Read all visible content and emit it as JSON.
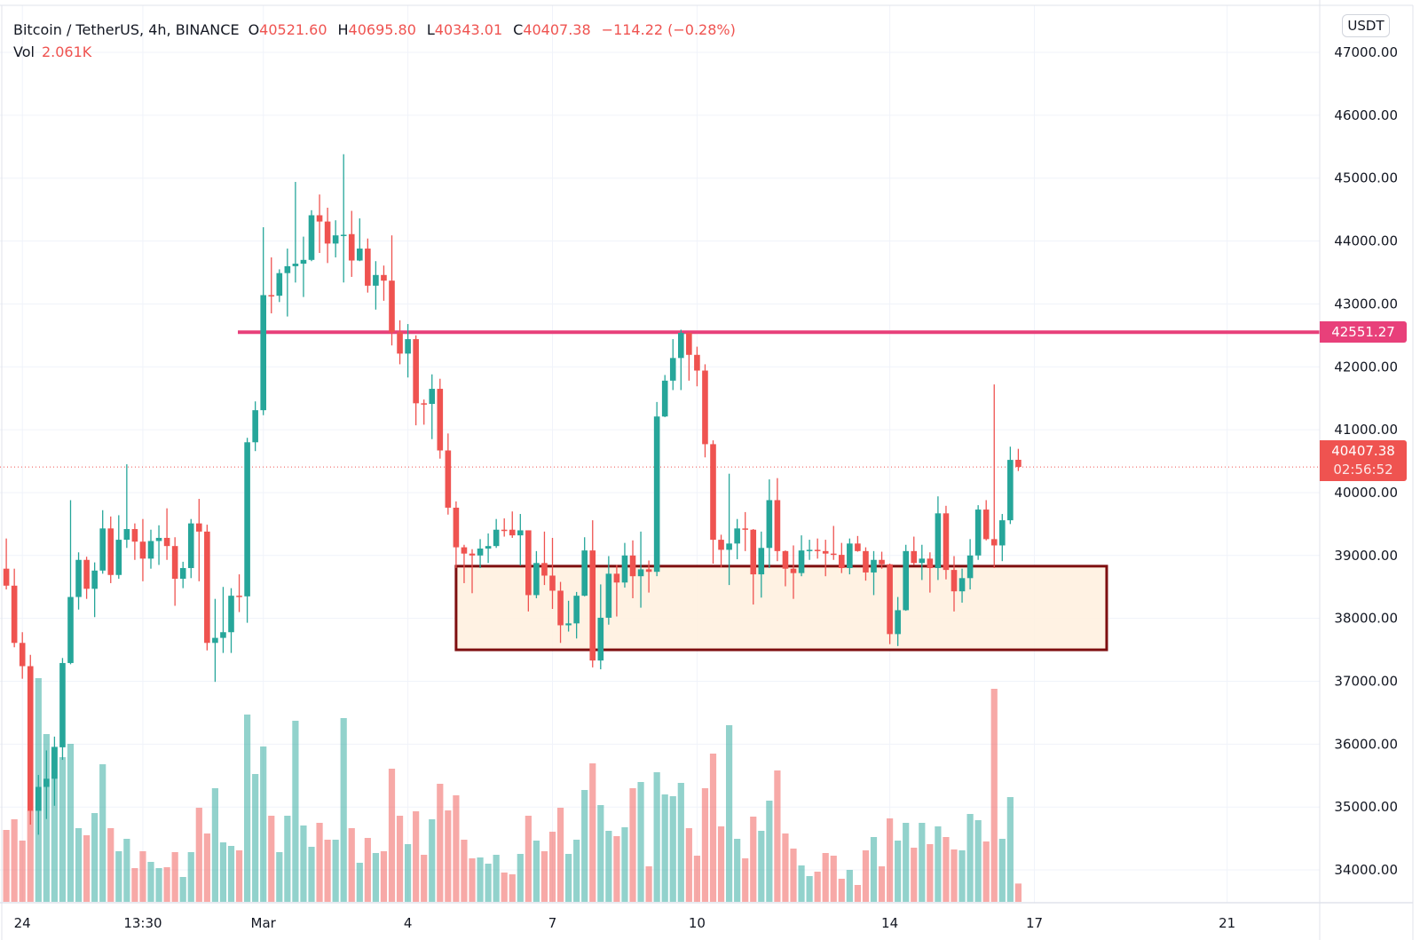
{
  "header": {
    "symbol": "Bitcoin / TetherUS, 4h, BINANCE",
    "open_key": "O",
    "open": "40521.60",
    "high_key": "H",
    "high": "40695.80",
    "low_key": "L",
    "low": "40343.01",
    "close_key": "C",
    "close": "40407.38",
    "change": "−114.22 (−0.28%)",
    "vol_key": "Vol",
    "vol": "2.061K"
  },
  "currency_button": "USDT",
  "horizontal_line": {
    "price": 42551.27,
    "label": "42551.27",
    "color": "#E8407A"
  },
  "last_price": {
    "price": 40407.38,
    "label": "40407.38",
    "countdown": "02:56:52",
    "color": "#EF5350"
  },
  "zone": {
    "from_bar": 56,
    "to_bar": 137,
    "top": 38830,
    "bottom": 37500,
    "fill": "#FFF0DE",
    "border": "#7E0F10"
  },
  "colors": {
    "up": "#26A69A",
    "down": "#EF5350"
  },
  "chart_data": {
    "type": "candlestick",
    "title": "Bitcoin / TetherUS, 4h, BINANCE",
    "ylim": [
      33400,
      47500
    ],
    "y_ticks": [
      "47000.00",
      "46000.00",
      "45000.00",
      "44000.00",
      "43000.00",
      "42000.00",
      "41000.00",
      "40000.00",
      "39000.00",
      "38000.00",
      "37000.00",
      "36000.00",
      "35000.00",
      "34000.00"
    ],
    "x_ticks": [
      {
        "label": "24",
        "bar": 2
      },
      {
        "label": "13:30",
        "bar": 17
      },
      {
        "label": "Mar",
        "bar": 32
      },
      {
        "label": "4",
        "bar": 50
      },
      {
        "label": "7",
        "bar": 68
      },
      {
        "label": "10",
        "bar": 86
      },
      {
        "label": "14",
        "bar": 110
      },
      {
        "label": "17",
        "bar": 128
      },
      {
        "label": "21",
        "bar": 152
      }
    ],
    "ohlc": [
      [
        38790,
        39270,
        38460,
        38520
      ],
      [
        38520,
        38790,
        37540,
        37610
      ],
      [
        37610,
        37780,
        37040,
        37240
      ],
      [
        37240,
        37420,
        34720,
        34940
      ],
      [
        34940,
        35510,
        34560,
        35320
      ],
      [
        35320,
        35900,
        34810,
        35450
      ],
      [
        35450,
        36120,
        35020,
        35950
      ],
      [
        35950,
        37370,
        35750,
        37290
      ],
      [
        37290,
        39880,
        37270,
        38340
      ],
      [
        38340,
        39050,
        38140,
        38930
      ],
      [
        38930,
        38980,
        38310,
        38470
      ],
      [
        38470,
        38890,
        38020,
        38760
      ],
      [
        38760,
        39720,
        38710,
        39430
      ],
      [
        39430,
        39620,
        38560,
        38690
      ],
      [
        38690,
        39640,
        38630,
        39250
      ],
      [
        39250,
        40450,
        39120,
        39420
      ],
      [
        39420,
        39510,
        38930,
        39220
      ],
      [
        39220,
        39580,
        38590,
        38950
      ],
      [
        38950,
        39410,
        38790,
        39230
      ],
      [
        39230,
        39480,
        38850,
        39280
      ],
      [
        39280,
        39750,
        38930,
        39150
      ],
      [
        39150,
        39290,
        38200,
        38630
      ],
      [
        38630,
        38900,
        38480,
        38800
      ],
      [
        38800,
        39580,
        38640,
        39510
      ],
      [
        39510,
        39900,
        38590,
        39380
      ],
      [
        39380,
        39490,
        37490,
        37610
      ],
      [
        37610,
        38310,
        36990,
        37690
      ],
      [
        37690,
        38500,
        37450,
        37780
      ],
      [
        37780,
        38480,
        37450,
        38360
      ],
      [
        38360,
        38700,
        38100,
        38350
      ],
      [
        38350,
        40870,
        37930,
        40800
      ],
      [
        40800,
        41450,
        40660,
        41310
      ],
      [
        41310,
        44220,
        41230,
        43140
      ],
      [
        43140,
        43740,
        42850,
        43130
      ],
      [
        43130,
        43550,
        43030,
        43490
      ],
      [
        43490,
        43880,
        42800,
        43600
      ],
      [
        43600,
        44940,
        43340,
        43640
      ],
      [
        43640,
        44070,
        43110,
        43700
      ],
      [
        43700,
        44490,
        43680,
        44410
      ],
      [
        44410,
        44740,
        43810,
        44310
      ],
      [
        44310,
        44530,
        43650,
        43960
      ],
      [
        43960,
        44330,
        43740,
        44090
      ],
      [
        44090,
        45380,
        43340,
        44100
      ],
      [
        44110,
        44480,
        43430,
        43690
      ],
      [
        43690,
        44360,
        43680,
        43880
      ],
      [
        43880,
        44040,
        43180,
        43290
      ],
      [
        43290,
        43680,
        42910,
        43460
      ],
      [
        43460,
        43610,
        43050,
        43370
      ],
      [
        43370,
        44090,
        42340,
        42550
      ],
      [
        42550,
        42740,
        42040,
        42210
      ],
      [
        42210,
        42680,
        41830,
        42440
      ],
      [
        42440,
        42500,
        41070,
        41420
      ],
      [
        41420,
        41480,
        41080,
        41410
      ],
      [
        41410,
        41880,
        40850,
        41650
      ],
      [
        41650,
        41810,
        40540,
        40670
      ],
      [
        40670,
        40940,
        39650,
        39760
      ],
      [
        39760,
        39860,
        38800,
        39130
      ],
      [
        39130,
        39170,
        38560,
        39030
      ],
      [
        39030,
        39100,
        38400,
        39000
      ],
      [
        39000,
        39260,
        38800,
        39110
      ],
      [
        39110,
        39350,
        38880,
        39150
      ],
      [
        39150,
        39580,
        39120,
        39410
      ],
      [
        39410,
        39590,
        39300,
        39400
      ],
      [
        39410,
        39700,
        39280,
        39320
      ],
      [
        39320,
        39660,
        38840,
        39400
      ],
      [
        39400,
        39400,
        38110,
        38370
      ],
      [
        38370,
        39070,
        38320,
        38880
      ],
      [
        38880,
        39380,
        38530,
        38680
      ],
      [
        38680,
        39280,
        38150,
        38440
      ],
      [
        38440,
        38580,
        37610,
        37890
      ],
      [
        37890,
        38280,
        37790,
        37920
      ],
      [
        37920,
        38420,
        37680,
        38360
      ],
      [
        38360,
        39290,
        38350,
        39080
      ],
      [
        39080,
        39560,
        37220,
        37330
      ],
      [
        37330,
        38540,
        37190,
        38010
      ],
      [
        38010,
        38990,
        37900,
        38710
      ],
      [
        38710,
        38850,
        38030,
        38570
      ],
      [
        38570,
        39200,
        38490,
        39000
      ],
      [
        39000,
        39240,
        38320,
        38670
      ],
      [
        38670,
        39380,
        38170,
        38780
      ],
      [
        38780,
        38920,
        38410,
        38740
      ],
      [
        38740,
        41440,
        38670,
        41210
      ],
      [
        41210,
        41870,
        41200,
        41780
      ],
      [
        41780,
        42440,
        41630,
        42140
      ],
      [
        42140,
        42590,
        41630,
        42540
      ],
      [
        42540,
        42550,
        41780,
        42190
      ],
      [
        42190,
        42320,
        41690,
        41940
      ],
      [
        41940,
        42040,
        40560,
        40770
      ],
      [
        40770,
        40830,
        38870,
        39250
      ],
      [
        39250,
        39330,
        38810,
        39090
      ],
      [
        39090,
        40300,
        38530,
        39190
      ],
      [
        39190,
        39580,
        38940,
        39430
      ],
      [
        39430,
        39690,
        39070,
        39420
      ],
      [
        39410,
        39420,
        38220,
        38700
      ],
      [
        38700,
        39380,
        38330,
        39120
      ],
      [
        39120,
        40210,
        38800,
        39880
      ],
      [
        39880,
        40230,
        38910,
        39070
      ],
      [
        39070,
        39080,
        38510,
        38790
      ],
      [
        38790,
        39160,
        38310,
        38720
      ],
      [
        38720,
        39320,
        38670,
        39080
      ],
      [
        39080,
        39250,
        38930,
        39090
      ],
      [
        39090,
        39270,
        38950,
        39070
      ],
      [
        39070,
        39250,
        38670,
        39030
      ],
      [
        39030,
        39470,
        38930,
        39010
      ],
      [
        39010,
        39200,
        38720,
        38800
      ],
      [
        38800,
        39270,
        38700,
        39190
      ],
      [
        39190,
        39310,
        39060,
        39070
      ],
      [
        39070,
        39130,
        38600,
        38730
      ],
      [
        38730,
        39070,
        38370,
        38930
      ],
      [
        38930,
        39060,
        38790,
        38860
      ],
      [
        38860,
        38870,
        37590,
        37750
      ],
      [
        37750,
        38340,
        37560,
        38130
      ],
      [
        38130,
        39170,
        38120,
        39070
      ],
      [
        39070,
        39300,
        38850,
        38880
      ],
      [
        38880,
        39170,
        38610,
        38950
      ],
      [
        38950,
        39050,
        38410,
        38800
      ],
      [
        38800,
        39940,
        38610,
        39670
      ],
      [
        39670,
        39790,
        38620,
        38770
      ],
      [
        38770,
        38990,
        38110,
        38430
      ],
      [
        38430,
        38790,
        38250,
        38640
      ],
      [
        38640,
        39260,
        38460,
        39000
      ],
      [
        39000,
        39800,
        38930,
        39730
      ],
      [
        39730,
        39880,
        39240,
        39260
      ],
      [
        39260,
        41720,
        38800,
        39160
      ],
      [
        39160,
        39660,
        38910,
        39560
      ],
      [
        39560,
        40730,
        39500,
        40520
      ],
      [
        40521.6,
        40695.8,
        40343.01,
        40407.38
      ]
    ],
    "volume_k": [
      8.1,
      9.3,
      6.9,
      10.3,
      25.2,
      18.9,
      17.5,
      16.3,
      17.8,
      8.3,
      7.5,
      10.0,
      15.5,
      8.3,
      5.7,
      7.1,
      3.8,
      5.7,
      4.5,
      3.8,
      3.9,
      5.6,
      2.8,
      5.6,
      10.6,
      7.7,
      12.8,
      6.7,
      6.3,
      5.8,
      21.1,
      14.4,
      17.5,
      9.7,
      5.6,
      9.7,
      20.4,
      8.6,
      6.2,
      8.9,
      7.0,
      7.0,
      20.7,
      8.3,
      4.4,
      7.2,
      5.5,
      5.7,
      15.0,
      9.7,
      6.5,
      10.2,
      5.3,
      9.3,
      13.3,
      10.3,
      12.0,
      7.0,
      4.9,
      5.0,
      4.3,
      5.3,
      3.3,
      3.1,
      5.4,
      9.7,
      6.9,
      5.7,
      7.9,
      10.6,
      5.4,
      7.0,
      12.6,
      15.6,
      10.9,
      8.0,
      7.4,
      8.4,
      12.8,
      13.5,
      4.0,
      14.6,
      12.1,
      11.9,
      13.4,
      8.3,
      5.2,
      12.8,
      16.7,
      8.5,
      19.9,
      7.1,
      4.9,
      9.6,
      8.0,
      11.4,
      14.8,
      7.7,
      6.0,
      4.1,
      2.9,
      3.4,
      5.5,
      5.2,
      2.6,
      3.6,
      1.9,
      5.8,
      7.3,
      4.0,
      9.4,
      6.9,
      8.9,
      6.1,
      8.9,
      6.5,
      8.5,
      7.3,
      5.9,
      5.8,
      9.9,
      9.2,
      6.8,
      24.0,
      7.1,
      11.8,
      2.061
    ]
  }
}
